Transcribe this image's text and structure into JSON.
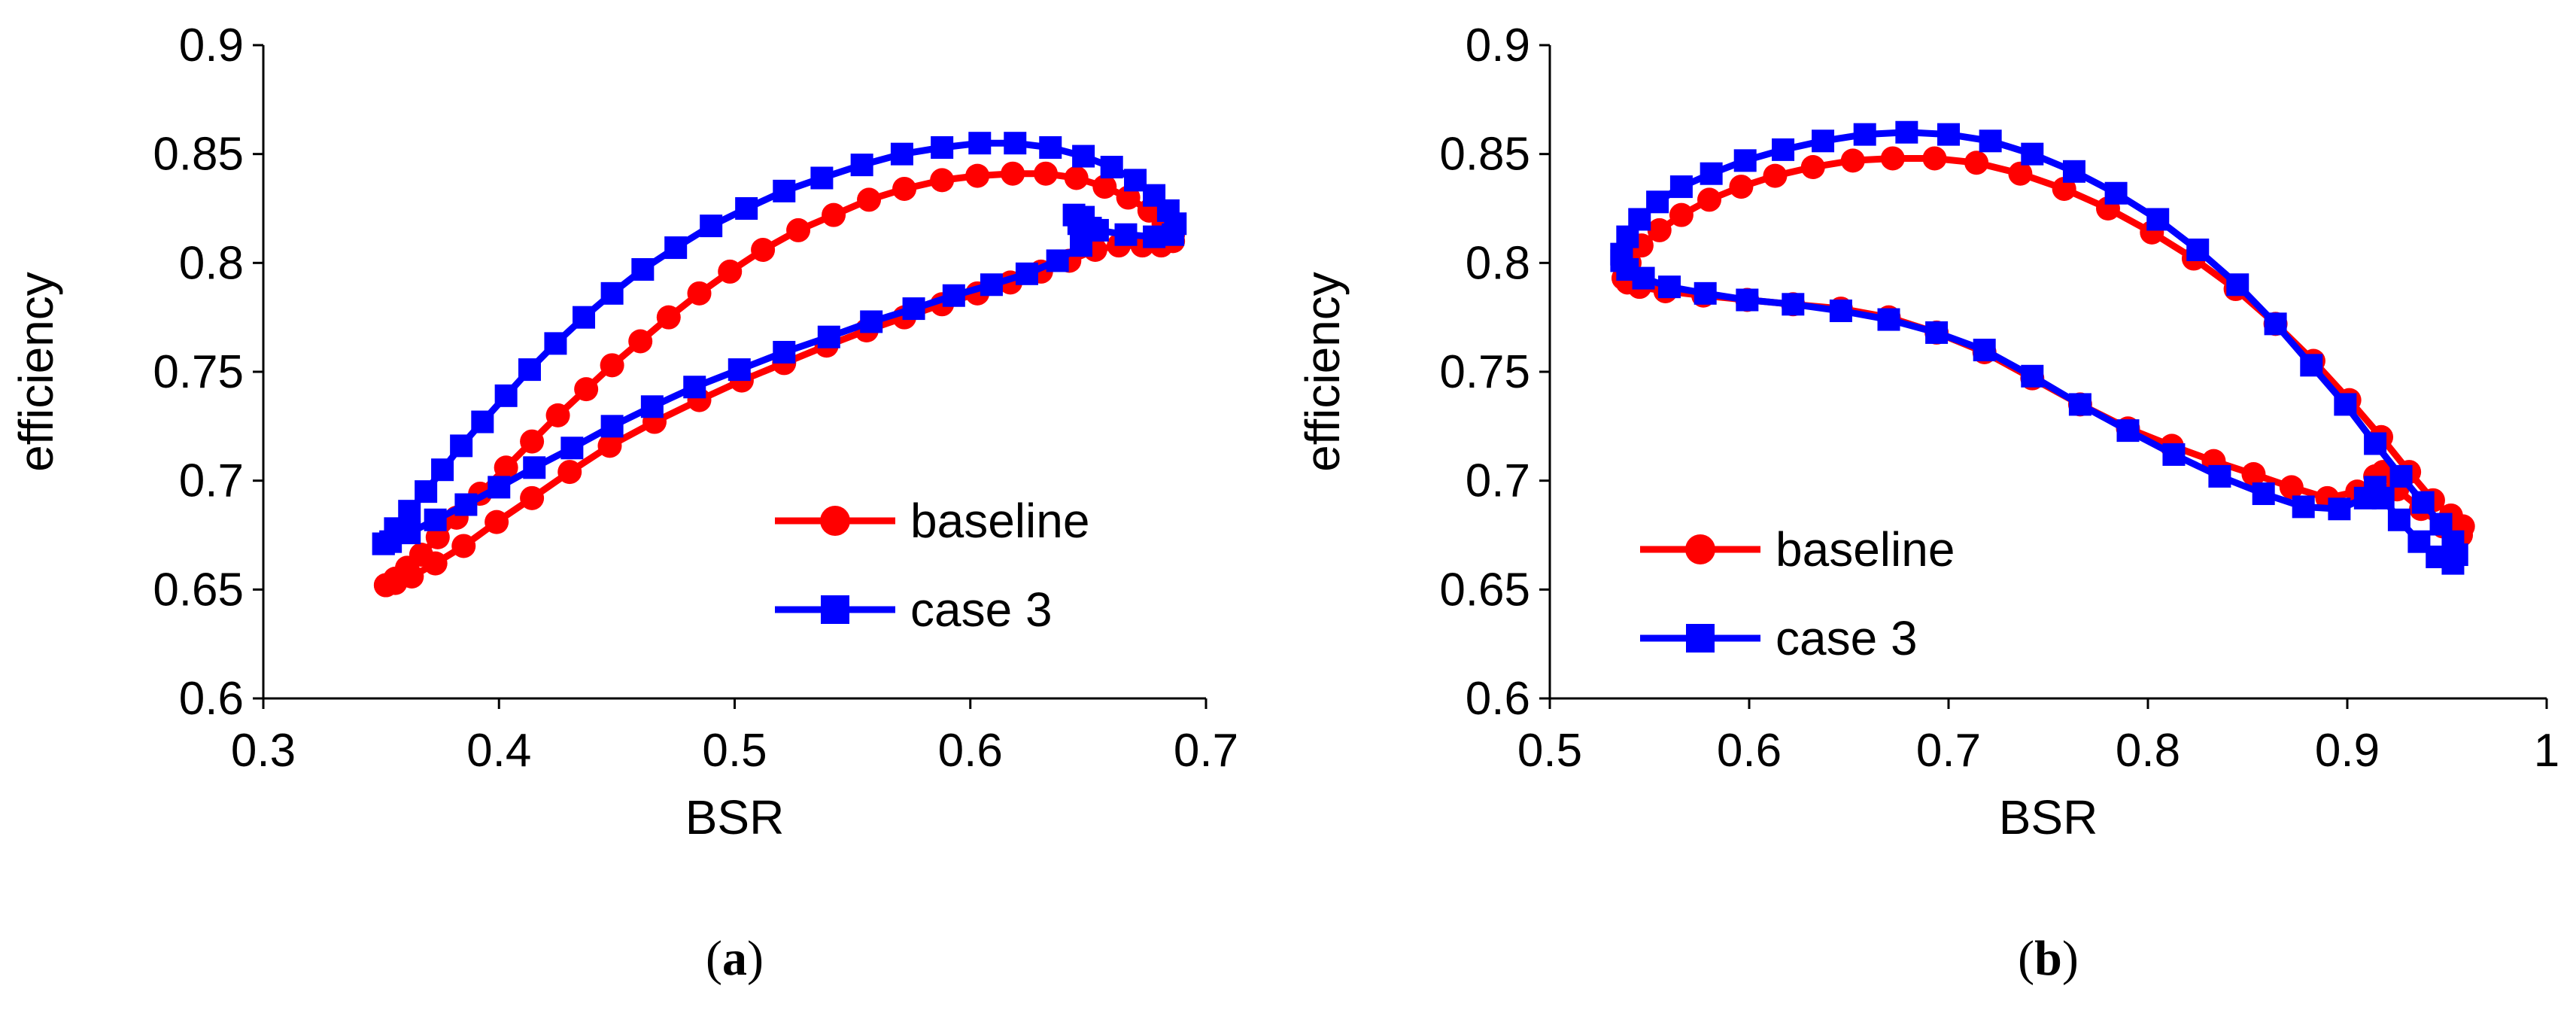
{
  "chart_data": [
    {
      "panel": "a",
      "caption_open": "(",
      "caption_letter": "a",
      "caption_close": ")",
      "type": "line",
      "title": "",
      "xlabel": "BSR",
      "ylabel": "efficiency",
      "xlim": [
        0.3,
        0.7
      ],
      "ylim": [
        0.6,
        0.9
      ],
      "xticks": [
        "0.3",
        "0.4",
        "0.5",
        "0.6",
        "0.7"
      ],
      "yticks": [
        "0.6",
        "0.65",
        "0.7",
        "0.75",
        "0.8",
        "0.85",
        "0.9"
      ],
      "legend_position": "bottom-right",
      "series": [
        {
          "name": "baseline",
          "color": "#ff0000",
          "marker": "circle",
          "points": [
            [
              0.352,
              0.652
            ],
            [
              0.356,
              0.655
            ],
            [
              0.361,
              0.66
            ],
            [
              0.367,
              0.666
            ],
            [
              0.374,
              0.674
            ],
            [
              0.382,
              0.683
            ],
            [
              0.392,
              0.694
            ],
            [
              0.403,
              0.706
            ],
            [
              0.414,
              0.718
            ],
            [
              0.425,
              0.73
            ],
            [
              0.437,
              0.742
            ],
            [
              0.448,
              0.753
            ],
            [
              0.46,
              0.764
            ],
            [
              0.472,
              0.775
            ],
            [
              0.485,
              0.786
            ],
            [
              0.498,
              0.796
            ],
            [
              0.512,
              0.806
            ],
            [
              0.527,
              0.815
            ],
            [
              0.542,
              0.822
            ],
            [
              0.557,
              0.829
            ],
            [
              0.572,
              0.834
            ],
            [
              0.588,
              0.838
            ],
            [
              0.603,
              0.84
            ],
            [
              0.618,
              0.841
            ],
            [
              0.632,
              0.841
            ],
            [
              0.645,
              0.839
            ],
            [
              0.657,
              0.835
            ],
            [
              0.667,
              0.83
            ],
            [
              0.676,
              0.824
            ],
            [
              0.682,
              0.818
            ],
            [
              0.686,
              0.813
            ],
            [
              0.686,
              0.81
            ],
            [
              0.681,
              0.808
            ],
            [
              0.673,
              0.808
            ],
            [
              0.663,
              0.808
            ],
            [
              0.653,
              0.806
            ],
            [
              0.642,
              0.801
            ],
            [
              0.63,
              0.796
            ],
            [
              0.617,
              0.791
            ],
            [
              0.603,
              0.786
            ],
            [
              0.588,
              0.781
            ],
            [
              0.572,
              0.775
            ],
            [
              0.556,
              0.769
            ],
            [
              0.539,
              0.762
            ],
            [
              0.521,
              0.754
            ],
            [
              0.503,
              0.746
            ],
            [
              0.485,
              0.737
            ],
            [
              0.466,
              0.727
            ],
            [
              0.447,
              0.716
            ],
            [
              0.43,
              0.704
            ],
            [
              0.414,
              0.692
            ],
            [
              0.399,
              0.681
            ],
            [
              0.385,
              0.67
            ],
            [
              0.373,
              0.662
            ],
            [
              0.363,
              0.656
            ],
            [
              0.356,
              0.653
            ],
            [
              0.352,
              0.652
            ]
          ]
        },
        {
          "name": "case 3",
          "color": "#0000ff",
          "marker": "square",
          "points": [
            [
              0.351,
              0.671
            ],
            [
              0.356,
              0.678
            ],
            [
              0.362,
              0.686
            ],
            [
              0.369,
              0.695
            ],
            [
              0.376,
              0.705
            ],
            [
              0.384,
              0.716
            ],
            [
              0.393,
              0.727
            ],
            [
              0.403,
              0.739
            ],
            [
              0.413,
              0.751
            ],
            [
              0.424,
              0.763
            ],
            [
              0.436,
              0.775
            ],
            [
              0.448,
              0.786
            ],
            [
              0.461,
              0.797
            ],
            [
              0.475,
              0.807
            ],
            [
              0.49,
              0.817
            ],
            [
              0.505,
              0.825
            ],
            [
              0.521,
              0.833
            ],
            [
              0.537,
              0.839
            ],
            [
              0.554,
              0.845
            ],
            [
              0.571,
              0.85
            ],
            [
              0.588,
              0.853
            ],
            [
              0.604,
              0.855
            ],
            [
              0.619,
              0.855
            ],
            [
              0.634,
              0.853
            ],
            [
              0.648,
              0.849
            ],
            [
              0.66,
              0.844
            ],
            [
              0.67,
              0.838
            ],
            [
              0.678,
              0.831
            ],
            [
              0.684,
              0.824
            ],
            [
              0.687,
              0.818
            ],
            [
              0.686,
              0.813
            ],
            [
              0.678,
              0.812
            ],
            [
              0.666,
              0.813
            ],
            [
              0.654,
              0.815
            ],
            [
              0.646,
              0.818
            ],
            [
              0.644,
              0.822
            ],
            [
              0.648,
              0.821
            ],
            [
              0.651,
              0.816
            ],
            [
              0.647,
              0.808
            ],
            [
              0.637,
              0.801
            ],
            [
              0.624,
              0.795
            ],
            [
              0.609,
              0.79
            ],
            [
              0.593,
              0.785
            ],
            [
              0.576,
              0.779
            ],
            [
              0.558,
              0.773
            ],
            [
              0.54,
              0.766
            ],
            [
              0.521,
              0.759
            ],
            [
              0.502,
              0.751
            ],
            [
              0.483,
              0.743
            ],
            [
              0.465,
              0.734
            ],
            [
              0.448,
              0.725
            ],
            [
              0.431,
              0.715
            ],
            [
              0.415,
              0.706
            ],
            [
              0.4,
              0.697
            ],
            [
              0.386,
              0.689
            ],
            [
              0.373,
              0.682
            ],
            [
              0.362,
              0.676
            ],
            [
              0.354,
              0.672
            ],
            [
              0.351,
              0.671
            ]
          ]
        }
      ]
    },
    {
      "panel": "b",
      "caption_open": "(",
      "caption_letter": "b",
      "caption_close": ")",
      "type": "line",
      "title": "",
      "xlabel": "BSR",
      "ylabel": "efficiency",
      "xlim": [
        0.5,
        1.0
      ],
      "ylim": [
        0.6,
        0.9
      ],
      "xticks": [
        "0.5",
        "0.6",
        "0.7",
        "0.8",
        "0.9",
        "1"
      ],
      "yticks": [
        "0.6",
        "0.65",
        "0.7",
        "0.75",
        "0.8",
        "0.85",
        "0.9"
      ],
      "legend_position": "bottom-left",
      "series": [
        {
          "name": "baseline",
          "color": "#ff0000",
          "marker": "circle",
          "points": [
            [
              0.537,
              0.793
            ],
            [
              0.54,
              0.8
            ],
            [
              0.546,
              0.808
            ],
            [
              0.555,
              0.815
            ],
            [
              0.566,
              0.822
            ],
            [
              0.58,
              0.829
            ],
            [
              0.596,
              0.835
            ],
            [
              0.613,
              0.84
            ],
            [
              0.632,
              0.844
            ],
            [
              0.652,
              0.847
            ],
            [
              0.672,
              0.848
            ],
            [
              0.693,
              0.848
            ],
            [
              0.714,
              0.846
            ],
            [
              0.736,
              0.841
            ],
            [
              0.758,
              0.834
            ],
            [
              0.78,
              0.825
            ],
            [
              0.802,
              0.814
            ],
            [
              0.823,
              0.802
            ],
            [
              0.844,
              0.788
            ],
            [
              0.864,
              0.772
            ],
            [
              0.883,
              0.755
            ],
            [
              0.901,
              0.737
            ],
            [
              0.917,
              0.72
            ],
            [
              0.931,
              0.704
            ],
            [
              0.943,
              0.691
            ],
            [
              0.952,
              0.684
            ],
            [
              0.958,
              0.679
            ],
            [
              0.957,
              0.675
            ],
            [
              0.948,
              0.679
            ],
            [
              0.937,
              0.687
            ],
            [
              0.925,
              0.696
            ],
            [
              0.918,
              0.704
            ],
            [
              0.914,
              0.702
            ],
            [
              0.905,
              0.695
            ],
            [
              0.89,
              0.692
            ],
            [
              0.872,
              0.697
            ],
            [
              0.853,
              0.703
            ],
            [
              0.833,
              0.709
            ],
            [
              0.812,
              0.716
            ],
            [
              0.79,
              0.724
            ],
            [
              0.766,
              0.735
            ],
            [
              0.742,
              0.747
            ],
            [
              0.718,
              0.759
            ],
            [
              0.694,
              0.768
            ],
            [
              0.67,
              0.775
            ],
            [
              0.646,
              0.779
            ],
            [
              0.622,
              0.781
            ],
            [
              0.599,
              0.783
            ],
            [
              0.577,
              0.785
            ],
            [
              0.558,
              0.787
            ],
            [
              0.545,
              0.789
            ],
            [
              0.539,
              0.791
            ],
            [
              0.537,
              0.793
            ]
          ]
        },
        {
          "name": "case 3",
          "color": "#0000ff",
          "marker": "square",
          "points": [
            [
              0.536,
              0.804
            ],
            [
              0.539,
              0.812
            ],
            [
              0.545,
              0.82
            ],
            [
              0.554,
              0.828
            ],
            [
              0.566,
              0.835
            ],
            [
              0.581,
              0.841
            ],
            [
              0.598,
              0.847
            ],
            [
              0.617,
              0.852
            ],
            [
              0.637,
              0.856
            ],
            [
              0.658,
              0.859
            ],
            [
              0.679,
              0.86
            ],
            [
              0.7,
              0.859
            ],
            [
              0.721,
              0.856
            ],
            [
              0.742,
              0.85
            ],
            [
              0.763,
              0.842
            ],
            [
              0.784,
              0.832
            ],
            [
              0.805,
              0.82
            ],
            [
              0.825,
              0.806
            ],
            [
              0.845,
              0.79
            ],
            [
              0.864,
              0.772
            ],
            [
              0.882,
              0.753
            ],
            [
              0.899,
              0.735
            ],
            [
              0.914,
              0.717
            ],
            [
              0.927,
              0.702
            ],
            [
              0.938,
              0.69
            ],
            [
              0.947,
              0.68
            ],
            [
              0.953,
              0.672
            ],
            [
              0.955,
              0.666
            ],
            [
              0.953,
              0.662
            ],
            [
              0.945,
              0.665
            ],
            [
              0.936,
              0.672
            ],
            [
              0.926,
              0.682
            ],
            [
              0.918,
              0.692
            ],
            [
              0.914,
              0.697
            ],
            [
              0.909,
              0.692
            ],
            [
              0.896,
              0.687
            ],
            [
              0.878,
              0.688
            ],
            [
              0.858,
              0.694
            ],
            [
              0.836,
              0.702
            ],
            [
              0.813,
              0.712
            ],
            [
              0.79,
              0.723
            ],
            [
              0.766,
              0.735
            ],
            [
              0.742,
              0.748
            ],
            [
              0.718,
              0.76
            ],
            [
              0.694,
              0.768
            ],
            [
              0.67,
              0.774
            ],
            [
              0.646,
              0.778
            ],
            [
              0.622,
              0.781
            ],
            [
              0.599,
              0.783
            ],
            [
              0.578,
              0.786
            ],
            [
              0.56,
              0.789
            ],
            [
              0.547,
              0.793
            ],
            [
              0.539,
              0.797
            ],
            [
              0.536,
              0.801
            ],
            [
              0.536,
              0.804
            ]
          ]
        }
      ]
    }
  ]
}
